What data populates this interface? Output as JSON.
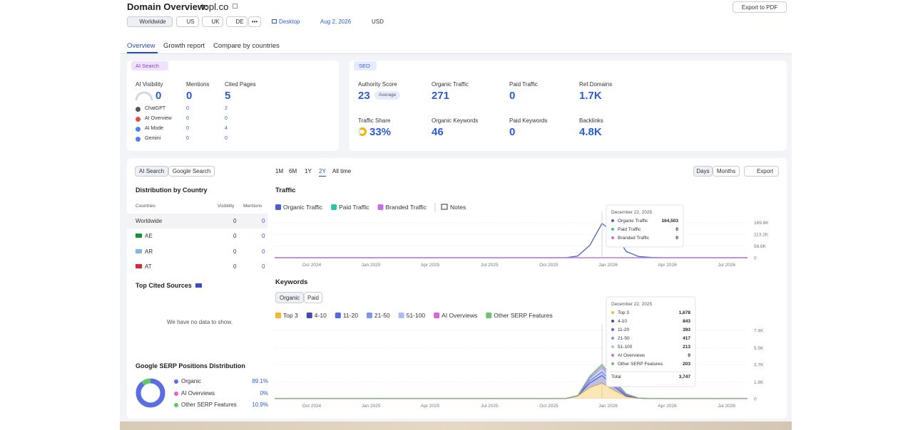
{
  "header": {
    "title": "Domain Overview:",
    "domain": "topl.co",
    "export": "Export to PDF"
  },
  "filters": {
    "databases": [
      "Worldwide",
      "US",
      "UK",
      "DE"
    ],
    "more": "•••",
    "device": "Desktop",
    "date": "Aug 2, 2026",
    "currency": "USD"
  },
  "tabs": [
    "Overview",
    "Growth report",
    "Compare by countries"
  ],
  "ai_search": {
    "label": "AI Search",
    "metrics": [
      {
        "label": "AI Visibility",
        "value": 0
      },
      {
        "label": "Mentions",
        "value": 0
      },
      {
        "label": "Cited Pages",
        "value": 5
      }
    ],
    "rows": [
      [
        "ChatGPT",
        0,
        2
      ],
      [
        "AI Overview",
        0,
        0
      ],
      [
        "AI Mode",
        0,
        4
      ],
      [
        "Gemini",
        0,
        0
      ]
    ]
  },
  "seo": {
    "label": "SEO",
    "badge": "Average",
    "metrics": [
      {
        "label": "Authority Score",
        "value": 23
      },
      {
        "label": "Organic Traffic",
        "value": 271
      },
      {
        "label": "Paid Traffic",
        "value": 0
      },
      {
        "label": "Ref.Domains",
        "value": "1.7K"
      },
      {
        "label": "Traffic Share",
        "value": "33%"
      },
      {
        "label": "Organic Keywords",
        "value": 46
      },
      {
        "label": "Paid Keywords",
        "value": 0
      },
      {
        "label": "Backlinks",
        "value": "4.8K"
      }
    ]
  },
  "panel": {
    "toggle": [
      "AI Search",
      "Google Search"
    ],
    "distribution_title": "Distribution by Country",
    "columns": [
      "Countries",
      "Visibility",
      "Mentions"
    ],
    "rows": [
      [
        "Worldwide",
        0,
        0
      ],
      [
        "AE",
        0,
        0
      ],
      [
        "AR",
        0,
        0
      ],
      [
        "AT",
        0,
        0
      ]
    ],
    "cited_title": "Top Cited Sources",
    "no_data": "We have no data to show.",
    "serp_title": "Google SERP Positions Distribution",
    "serp": {
      "labels": [
        "Organic",
        "AI Overviews",
        "Other SERP Features"
      ],
      "values": [
        89.1,
        0,
        10.9
      ],
      "value_labels": [
        "89.1%",
        "0%",
        "10.9%"
      ],
      "colors": [
        "#5b6ee1",
        "#e25fd6",
        "#5cc96b"
      ]
    }
  },
  "controls": {
    "ranges": [
      "1M",
      "6M",
      "1Y",
      "2Y",
      "All time"
    ],
    "active_range": 3,
    "granularity": [
      "Days",
      "Months"
    ],
    "export": "Export"
  },
  "traffic_chart": {
    "type": "line",
    "title": "Traffic",
    "notes": "Notes",
    "x_labels": [
      "Oct 2024",
      "Jan 2025",
      "Apr 2025",
      "Jul 2025",
      "Oct 2025",
      "Jan 2026",
      "Apr 2026",
      "Jul 2026"
    ],
    "ylim": [
      0,
      195000
    ],
    "yticks": [
      0,
      {
        "value": 56600,
        "label": "56.6K"
      },
      {
        "value": 113200,
        "label": "113.2K"
      },
      {
        "value": 169800,
        "label": "169.8K"
      }
    ],
    "series": [
      {
        "name": "Organic Traffic",
        "color": "#4a5fd0",
        "values": [
          0,
          0,
          0,
          0,
          0,
          0,
          0,
          0,
          0,
          0,
          0,
          0,
          0,
          0,
          0,
          0,
          0,
          0,
          0,
          0,
          0,
          0,
          0,
          0,
          0,
          8000,
          60000,
          164503,
          120000,
          30000,
          6000,
          1500,
          0,
          0,
          0,
          0,
          0,
          0,
          0,
          0
        ]
      },
      {
        "name": "Paid Traffic",
        "color": "#2fc4a8",
        "values": [
          0,
          0,
          0,
          0,
          0,
          0,
          0,
          0,
          0,
          0,
          0,
          0,
          0,
          0,
          0,
          0,
          0,
          0,
          0,
          0,
          0,
          0,
          0,
          0,
          0,
          0,
          0,
          0,
          0,
          0,
          0,
          0,
          0,
          0,
          0,
          0,
          0,
          0,
          0,
          0
        ]
      },
      {
        "name": "Branded Traffic",
        "color": "#c76ee6",
        "values": [
          0,
          0,
          0,
          0,
          0,
          0,
          0,
          0,
          0,
          0,
          0,
          0,
          0,
          0,
          0,
          0,
          0,
          0,
          0,
          0,
          0,
          0,
          0,
          0,
          0,
          0,
          0,
          0,
          0,
          0,
          0,
          0,
          0,
          0,
          0,
          0,
          0,
          0,
          0,
          0
        ]
      }
    ],
    "tooltip": {
      "date": "December 22, 2025",
      "rows": [
        {
          "name": "Organic Traffic",
          "value": 164503,
          "value_label": "164,503"
        },
        {
          "name": "Paid Traffic",
          "value": 0
        },
        {
          "name": "Branded Traffic",
          "value": 0
        }
      ]
    }
  },
  "keywords_chart": {
    "type": "area",
    "title": "Keywords",
    "toggle": [
      "Organic",
      "Paid"
    ],
    "x_labels": [
      "Oct 2024",
      "Jan 2025",
      "Apr 2025",
      "Jul 2025",
      "Oct 2025",
      "Jan 2026",
      "Apr 2026",
      "Jul 2026"
    ],
    "ylim": [
      0,
      7400
    ],
    "yticks": [
      0,
      {
        "value": 1800,
        "label": "1.8K"
      },
      {
        "value": 3700,
        "label": "3.7K"
      },
      {
        "value": 5500,
        "label": "5.5K"
      },
      {
        "value": 7400,
        "label": "7.4K"
      }
    ],
    "series": [
      {
        "name": "Top 3",
        "color": "#f5b82e",
        "values": [
          0,
          0,
          0,
          0,
          0,
          0,
          0,
          0,
          0,
          0,
          0,
          0,
          0,
          0,
          0,
          0,
          0,
          0,
          0,
          0,
          0,
          0,
          0,
          0,
          0,
          300,
          1200,
          1678,
          900,
          200,
          50,
          0,
          0,
          0,
          0,
          0,
          0,
          0,
          0,
          0
        ]
      },
      {
        "name": "4-10",
        "color": "#3f4ab8",
        "values": [
          0,
          0,
          0,
          0,
          0,
          0,
          0,
          0,
          0,
          0,
          0,
          0,
          0,
          0,
          0,
          0,
          0,
          0,
          0,
          0,
          0,
          0,
          0,
          0,
          0,
          0,
          500,
          843,
          400,
          100,
          0,
          0,
          0,
          0,
          0,
          0,
          0,
          0,
          0,
          0
        ]
      },
      {
        "name": "11-20",
        "color": "#5468e0",
        "values": [
          0,
          0,
          0,
          0,
          0,
          0,
          0,
          0,
          0,
          0,
          0,
          0,
          0,
          0,
          0,
          0,
          0,
          0,
          0,
          0,
          0,
          0,
          0,
          0,
          0,
          0,
          250,
          393,
          200,
          60,
          0,
          0,
          0,
          0,
          0,
          0,
          0,
          0,
          0,
          0
        ]
      },
      {
        "name": "21-50",
        "color": "#7d96ef",
        "values": [
          0,
          0,
          0,
          0,
          0,
          0,
          0,
          0,
          0,
          0,
          0,
          0,
          0,
          0,
          0,
          0,
          0,
          0,
          0,
          0,
          0,
          0,
          0,
          0,
          0,
          0,
          250,
          417,
          220,
          80,
          0,
          0,
          0,
          0,
          0,
          0,
          0,
          0,
          0,
          0
        ]
      },
      {
        "name": "51-100",
        "color": "#a9bdf5",
        "values": [
          0,
          0,
          0,
          0,
          0,
          0,
          0,
          0,
          0,
          0,
          0,
          0,
          0,
          0,
          0,
          0,
          0,
          0,
          0,
          0,
          0,
          0,
          0,
          0,
          0,
          0,
          120,
          213,
          120,
          40,
          0,
          0,
          0,
          0,
          0,
          0,
          0,
          0,
          0,
          0
        ]
      },
      {
        "name": "AI Overviews",
        "color": "#d46ad8",
        "values": [
          0,
          0,
          0,
          0,
          0,
          0,
          0,
          0,
          0,
          0,
          0,
          0,
          0,
          0,
          0,
          0,
          0,
          0,
          0,
          0,
          0,
          0,
          0,
          0,
          0,
          0,
          0,
          0,
          0,
          0,
          0,
          0,
          0,
          0,
          0,
          0,
          0,
          0,
          0,
          0
        ]
      },
      {
        "name": "Other SERP Features",
        "color": "#6cc46c",
        "values": [
          40,
          40,
          40,
          40,
          40,
          40,
          40,
          40,
          40,
          40,
          40,
          40,
          40,
          40,
          40,
          40,
          40,
          40,
          40,
          40,
          40,
          40,
          40,
          40,
          40,
          60,
          150,
          203,
          150,
          60,
          40,
          40,
          40,
          40,
          40,
          40,
          40,
          40,
          40,
          40
        ]
      }
    ],
    "tooltip": {
      "date": "December 22, 2025",
      "rows": [
        {
          "name": "Top 3",
          "value": 1678,
          "value_label": "1,678"
        },
        {
          "name": "4-10",
          "value": 843
        },
        {
          "name": "11-20",
          "value": 393
        },
        {
          "name": "21-50",
          "value": 417
        },
        {
          "name": "51-100",
          "value": 213
        },
        {
          "name": "AI Overviews",
          "value": 0
        },
        {
          "name": "Other SERP Features",
          "value": 203
        }
      ],
      "total_label": "Total",
      "total": 3747,
      "total_label_value": "3,747"
    }
  }
}
